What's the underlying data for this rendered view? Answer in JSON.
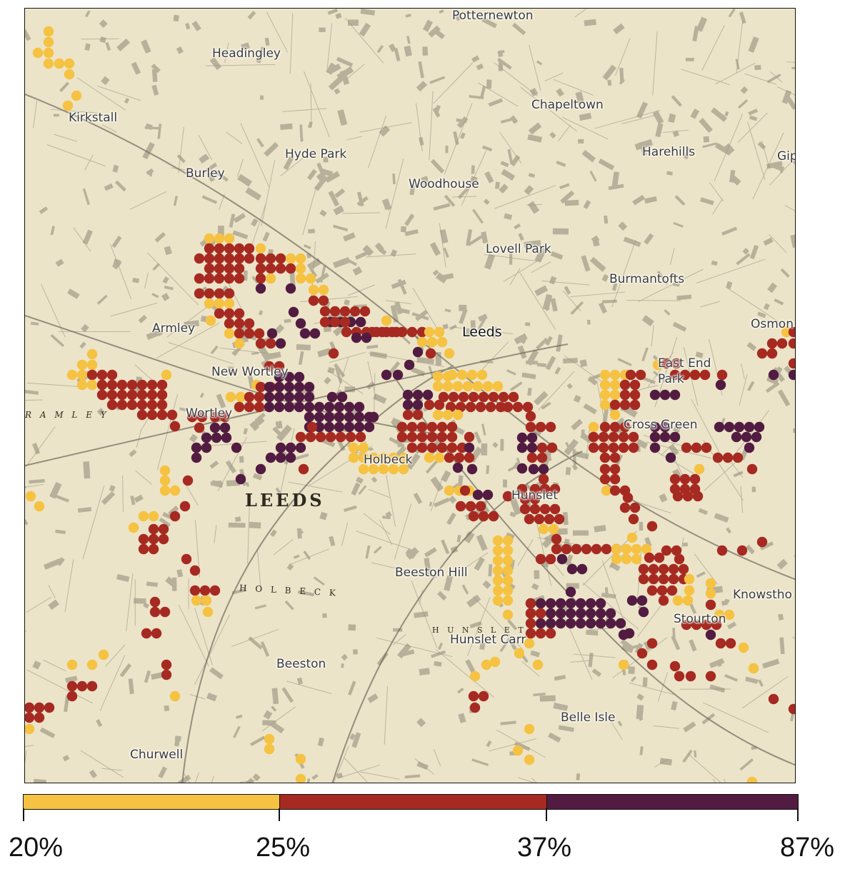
{
  "map": {
    "places": [
      {
        "name": "Potternewton"
      },
      {
        "name": "Headingley"
      },
      {
        "name": "Kirkstall"
      },
      {
        "name": "Chapeltown"
      },
      {
        "name": "Hyde Park"
      },
      {
        "name": "Harehills"
      },
      {
        "name": "Gip"
      },
      {
        "name": "Burley"
      },
      {
        "name": "Woodhouse"
      },
      {
        "name": "Lovell Park"
      },
      {
        "name": "Burmantofts"
      },
      {
        "name": "Armley"
      },
      {
        "name": "Leeds"
      },
      {
        "name": "Osmon"
      },
      {
        "name": "New Wortley"
      },
      {
        "name": "East End Park"
      },
      {
        "name": "Wortley"
      },
      {
        "name": "Cross Green"
      },
      {
        "name": "Holbeck"
      },
      {
        "name": "Hunslet"
      },
      {
        "name": "Beeston Hill"
      },
      {
        "name": "Knowstho"
      },
      {
        "name": "Stourton"
      },
      {
        "name": "Hunslet Carr"
      },
      {
        "name": "Beeston"
      },
      {
        "name": "Belle Isle"
      },
      {
        "name": "Churwell"
      }
    ],
    "historic_labels": [
      "LEEDS",
      "H O L B E C K",
      "R A M L E Y",
      "H U N S L E T"
    ]
  },
  "legend": {
    "colors": [
      "#f5c242",
      "#a62a22",
      "#521c42"
    ],
    "ticks": [
      "20%",
      "25%",
      "37%",
      "87%"
    ]
  }
}
